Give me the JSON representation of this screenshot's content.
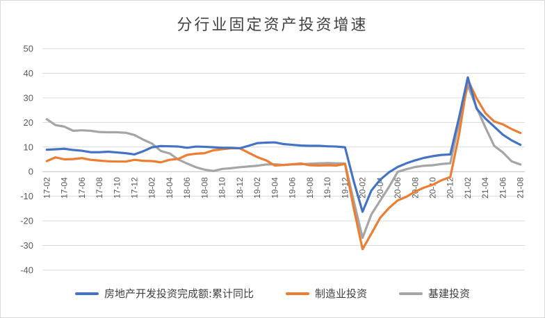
{
  "chart_data": {
    "type": "line",
    "title": "分行业固定资产投资增速",
    "ylim": [
      -40,
      50
    ],
    "yticks": [
      -40,
      -30,
      -20,
      -10,
      0,
      10,
      20,
      30,
      40,
      50
    ],
    "grid": true,
    "legend_position": "bottom",
    "x": [
      "17-02",
      "17-03",
      "17-04",
      "17-05",
      "17-06",
      "17-07",
      "17-08",
      "17-09",
      "17-10",
      "17-11",
      "17-12",
      "18-01",
      "18-02",
      "18-03",
      "18-04",
      "18-05",
      "18-06",
      "18-07",
      "18-08",
      "18-09",
      "18-10",
      "18-11",
      "18-12",
      "19-01",
      "19-02",
      "19-03",
      "19-04",
      "19-05",
      "19-06",
      "19-07",
      "19-08",
      "19-09",
      "19-10",
      "19-11",
      "19-12",
      "20-01",
      "20-02",
      "20-03",
      "20-04",
      "20-05",
      "20-06",
      "20-07",
      "20-08",
      "20-09",
      "20-10",
      "20-11",
      "20-12",
      "21-01",
      "21-02",
      "21-03",
      "21-04",
      "21-05",
      "21-06",
      "21-07",
      "21-08"
    ],
    "xtick_labels": [
      "17-02",
      "17-04",
      "17-06",
      "17-08",
      "17-10",
      "17-12",
      "18-02",
      "18-04",
      "18-06",
      "18-08",
      "18-10",
      "18-12",
      "19-02",
      "19-04",
      "19-06",
      "19-08",
      "19-10",
      "19-12",
      "20-02",
      "20-04",
      "20-06",
      "20-08",
      "20-10",
      "20-12",
      "21-02",
      "21-04",
      "21-06",
      "21-08"
    ],
    "series": [
      {
        "name": "房地产开发投资完成额:累计同比",
        "color": "#4472C4",
        "values": [
          8.9,
          9.1,
          9.3,
          8.8,
          8.5,
          7.9,
          7.9,
          8.1,
          7.8,
          7.5,
          7.0,
          8.3,
          9.9,
          10.4,
          10.3,
          10.2,
          9.7,
          10.2,
          10.1,
          9.9,
          9.7,
          9.7,
          9.5,
          10.5,
          11.6,
          11.8,
          11.9,
          11.2,
          10.9,
          10.6,
          10.5,
          10.5,
          10.3,
          10.2,
          9.9,
          -4.0,
          -16.3,
          -7.7,
          -3.3,
          -0.3,
          1.9,
          3.4,
          4.6,
          5.6,
          6.3,
          6.8,
          7.0,
          22.0,
          38.3,
          25.6,
          21.6,
          18.3,
          15.0,
          12.7,
          10.9
        ]
      },
      {
        "name": "制造业投资",
        "color": "#ED7D31",
        "values": [
          4.3,
          5.8,
          5.0,
          5.1,
          5.5,
          4.8,
          4.5,
          4.2,
          4.1,
          4.1,
          4.8,
          4.4,
          4.3,
          3.8,
          4.8,
          5.2,
          6.8,
          7.3,
          7.5,
          8.7,
          9.1,
          9.5,
          9.5,
          7.7,
          5.9,
          4.6,
          2.5,
          2.7,
          3.0,
          3.3,
          2.6,
          2.5,
          2.6,
          2.5,
          3.1,
          -15.0,
          -31.5,
          -25.2,
          -18.8,
          -14.8,
          -11.7,
          -10.2,
          -8.1,
          -6.5,
          -5.3,
          -3.5,
          -2.2,
          15.0,
          37.3,
          29.8,
          23.8,
          20.4,
          19.2,
          17.3,
          15.7
        ]
      },
      {
        "name": "基建投资",
        "color": "#A5A5A5",
        "values": [
          21.3,
          18.9,
          18.3,
          16.6,
          16.8,
          16.6,
          16.1,
          16.0,
          16.0,
          15.8,
          14.9,
          13.0,
          11.4,
          8.4,
          7.4,
          4.9,
          3.3,
          1.8,
          0.8,
          0.3,
          1.1,
          1.4,
          1.8,
          2.1,
          2.4,
          2.9,
          3.0,
          2.7,
          2.9,
          3.0,
          3.2,
          3.4,
          3.5,
          3.4,
          3.3,
          -12.0,
          -26.9,
          -17.4,
          -11.8,
          -6.3,
          -0.1,
          1.0,
          1.9,
          2.4,
          2.6,
          3.1,
          3.4,
          20.0,
          35.0,
          26.0,
          18.0,
          10.5,
          7.8,
          4.2,
          2.9
        ]
      }
    ]
  }
}
